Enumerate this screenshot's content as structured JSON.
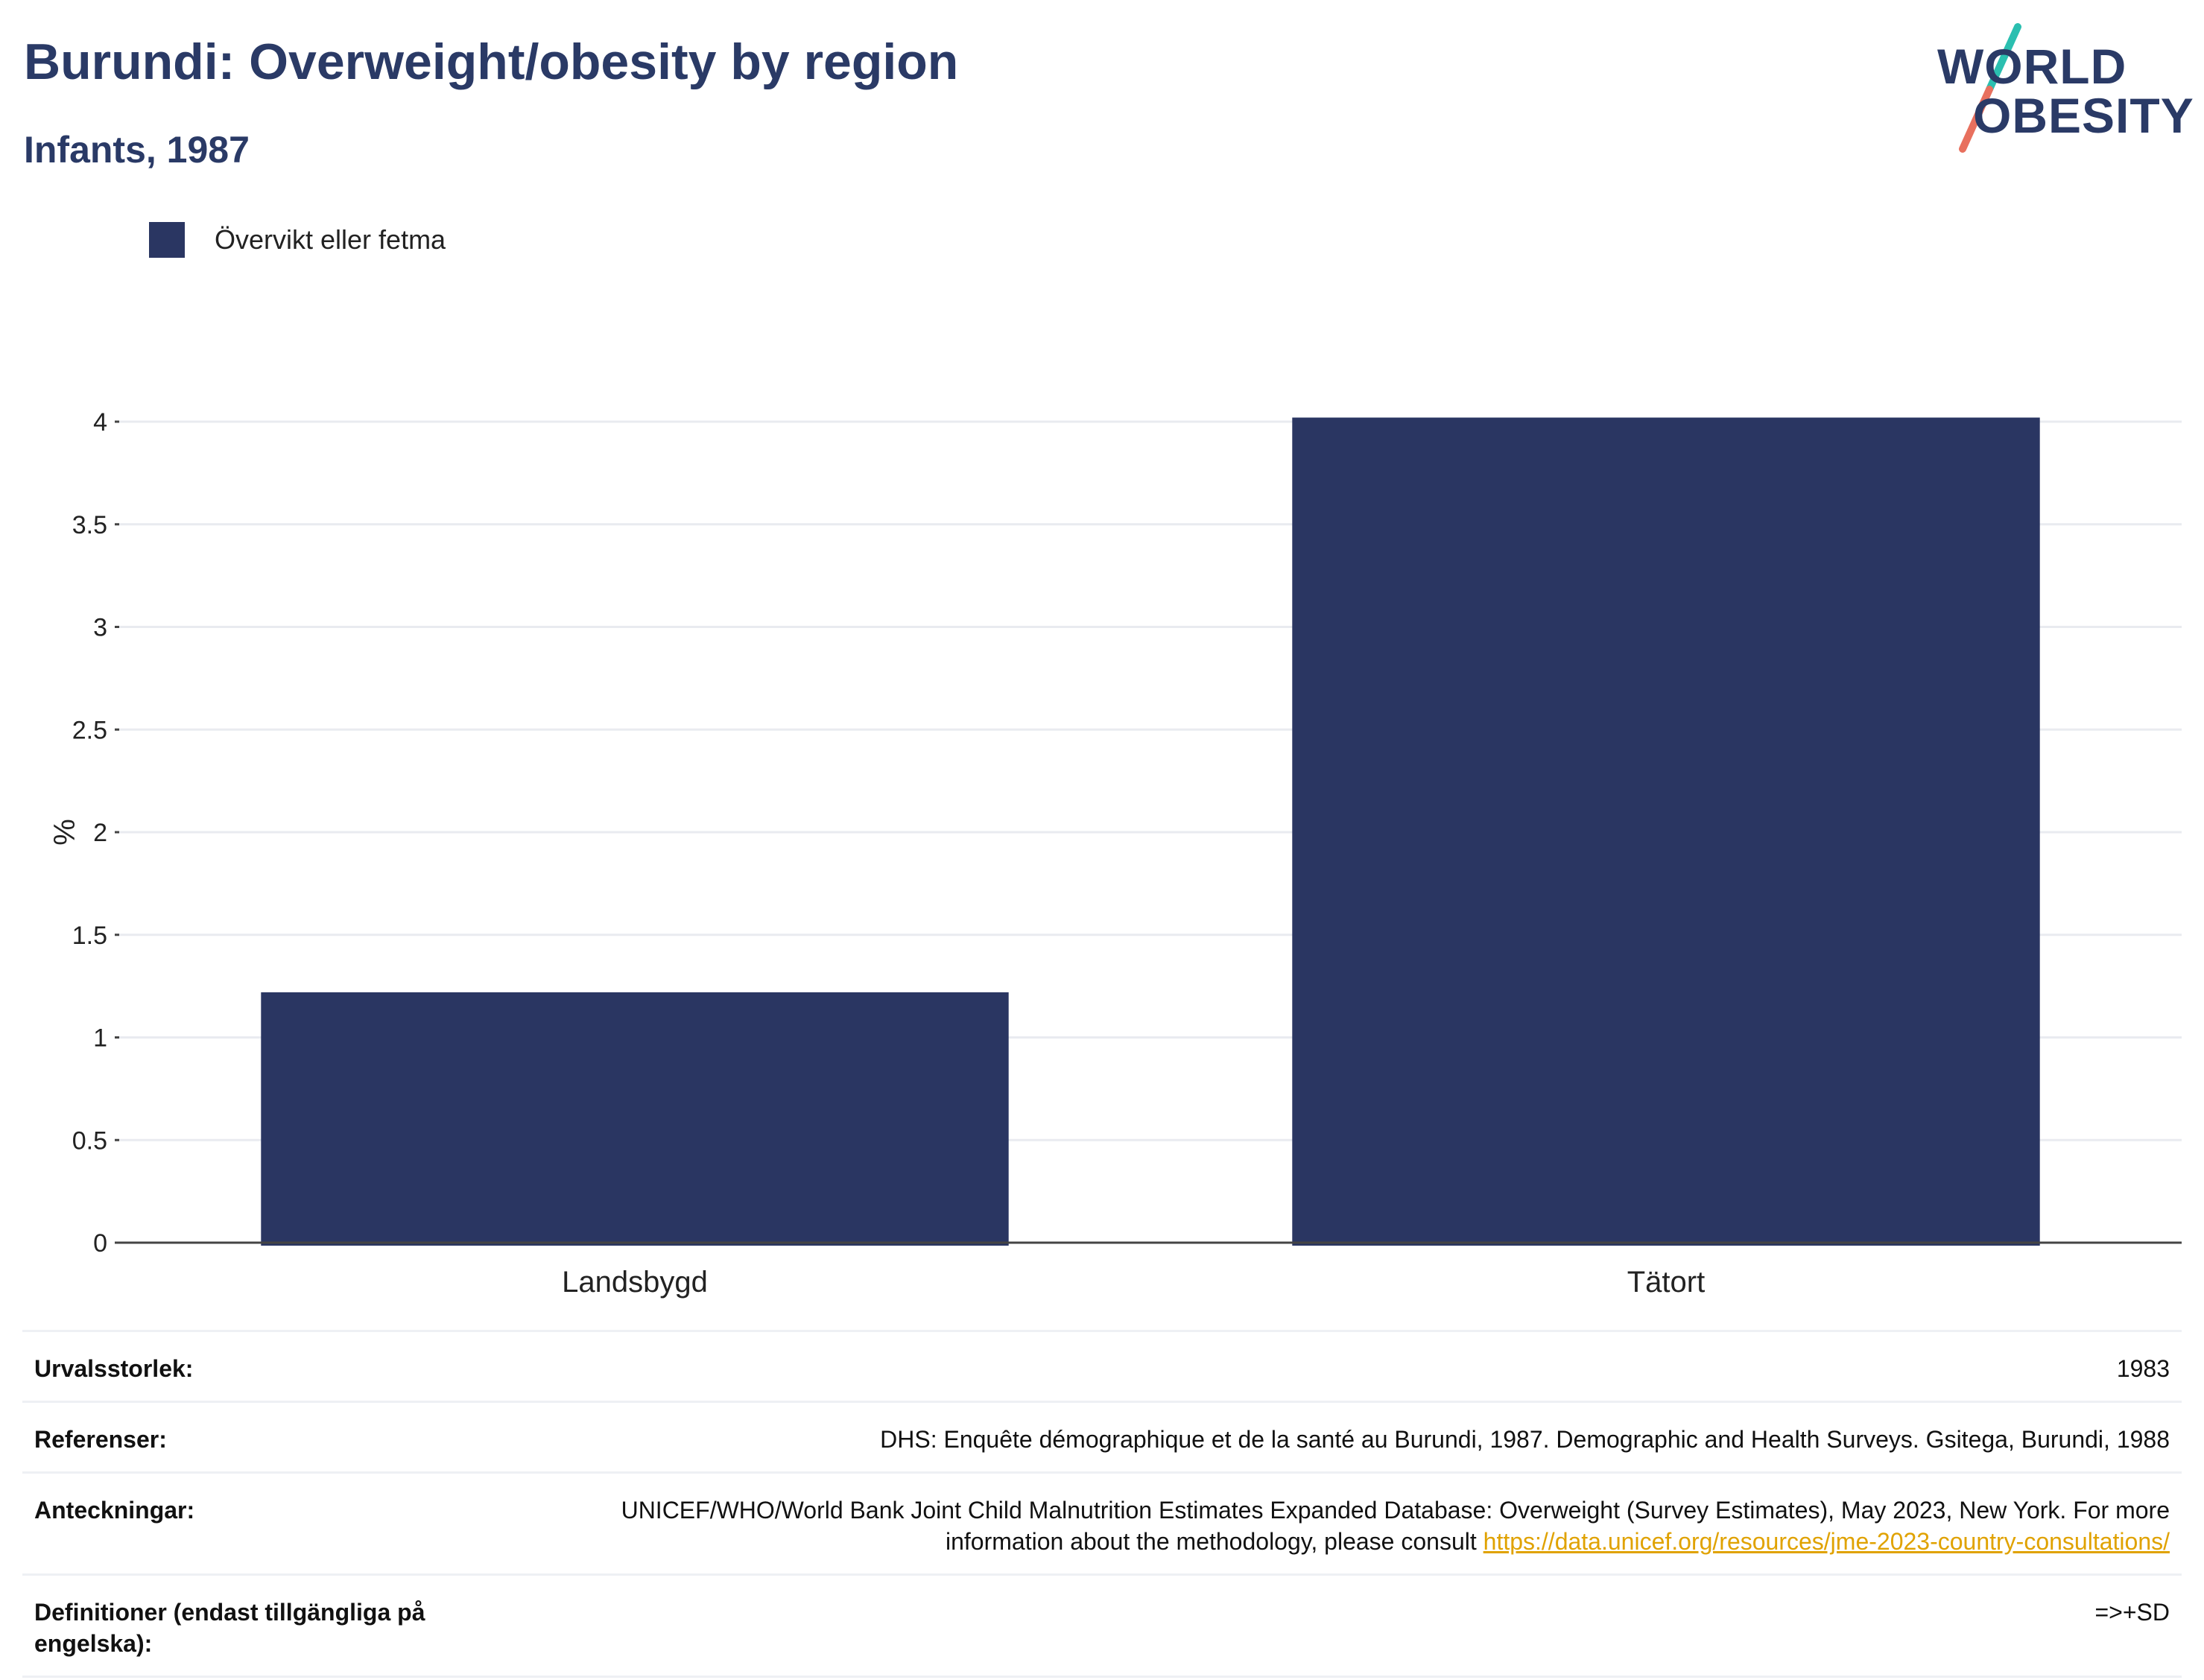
{
  "header": {
    "title": "Burundi: Overweight/obesity by region",
    "subtitle": "Infants, 1987"
  },
  "logo": {
    "line1": "WORLD",
    "line2": "OBESITY",
    "colors": {
      "text": "#2a3a66",
      "slash_top": "#2bbfb0",
      "slash_bottom": "#e8705e"
    }
  },
  "legend": {
    "label": "Övervikt eller fetma",
    "color": "#2a3662"
  },
  "chart_data": {
    "type": "bar",
    "categories": [
      "Landsbygd",
      "Tätort"
    ],
    "series": [
      {
        "name": "Övervikt eller fetma",
        "values": [
          1.22,
          4.02
        ],
        "color": "#2a3662"
      }
    ],
    "title": "Burundi: Overweight/obesity by region",
    "subtitle": "Infants, 1987",
    "xlabel": "",
    "ylabel": "%",
    "ylim": [
      0,
      4.1
    ],
    "yticks": [
      "0",
      "0.5",
      "1",
      "1.5",
      "2",
      "2.5",
      "3",
      "3.5",
      "4"
    ],
    "grid": true,
    "legend_position": "top-left"
  },
  "meta": {
    "rows": [
      {
        "key": "Urvalsstorlek:",
        "value": "1983"
      },
      {
        "key": "Referenser:",
        "value": "DHS: Enquête démographique et de la santé au Burundi, 1987. Demographic and Health Surveys. Gsitega, Burundi, 1988"
      },
      {
        "key": "Anteckningar:",
        "value": "UNICEF/WHO/World Bank Joint Child Malnutrition Estimates Expanded Database: Overweight (Survey Estimates), May 2023, New York. For more information about the methodology, please consult ",
        "link": "https://data.unicef.org/resources/jme-2023-country-consultations/"
      },
      {
        "key": "Definitioner (endast tillgängliga på engelska):",
        "value": "=>+SD"
      }
    ]
  }
}
